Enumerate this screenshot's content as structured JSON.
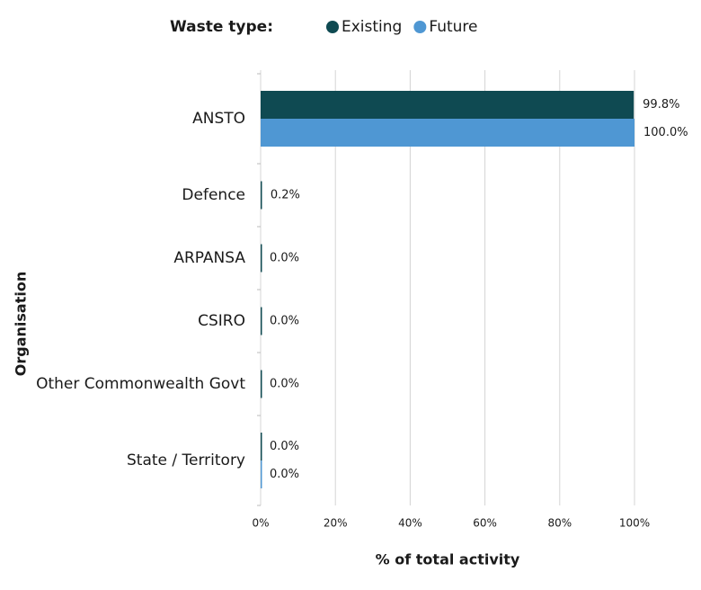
{
  "chart_data": {
    "type": "bar",
    "orientation": "horizontal",
    "legend_title": "Waste type:",
    "x_label": "% of total activity",
    "y_label": "Organisation",
    "categories": [
      "ANSTO",
      "Defence",
      "ARPANSA",
      "CSIRO",
      "Other Commonwealth Govt",
      "State / Territory"
    ],
    "series": [
      {
        "name": "Existing",
        "color": "#0f4a52",
        "values": [
          99.8,
          0.2,
          0.0,
          0.0,
          0.0,
          0.0
        ],
        "value_labels": [
          "99.8%",
          "0.2%",
          "0.0%",
          "0.0%",
          "0.0%",
          "0.0%"
        ]
      },
      {
        "name": "Future",
        "color": "#4f97d3",
        "values": [
          100.0,
          null,
          null,
          null,
          null,
          0.0
        ],
        "value_labels": [
          "100.0%",
          null,
          null,
          null,
          null,
          "0.0%"
        ]
      }
    ],
    "xlim": [
      0,
      100
    ],
    "xticks": [
      {
        "value": 0,
        "label": "0%"
      },
      {
        "value": 20,
        "label": "20%"
      },
      {
        "value": 40,
        "label": "40%"
      },
      {
        "value": 60,
        "label": "60%"
      },
      {
        "value": 80,
        "label": "80%"
      },
      {
        "value": 100,
        "label": "100%"
      }
    ],
    "grid": true
  }
}
